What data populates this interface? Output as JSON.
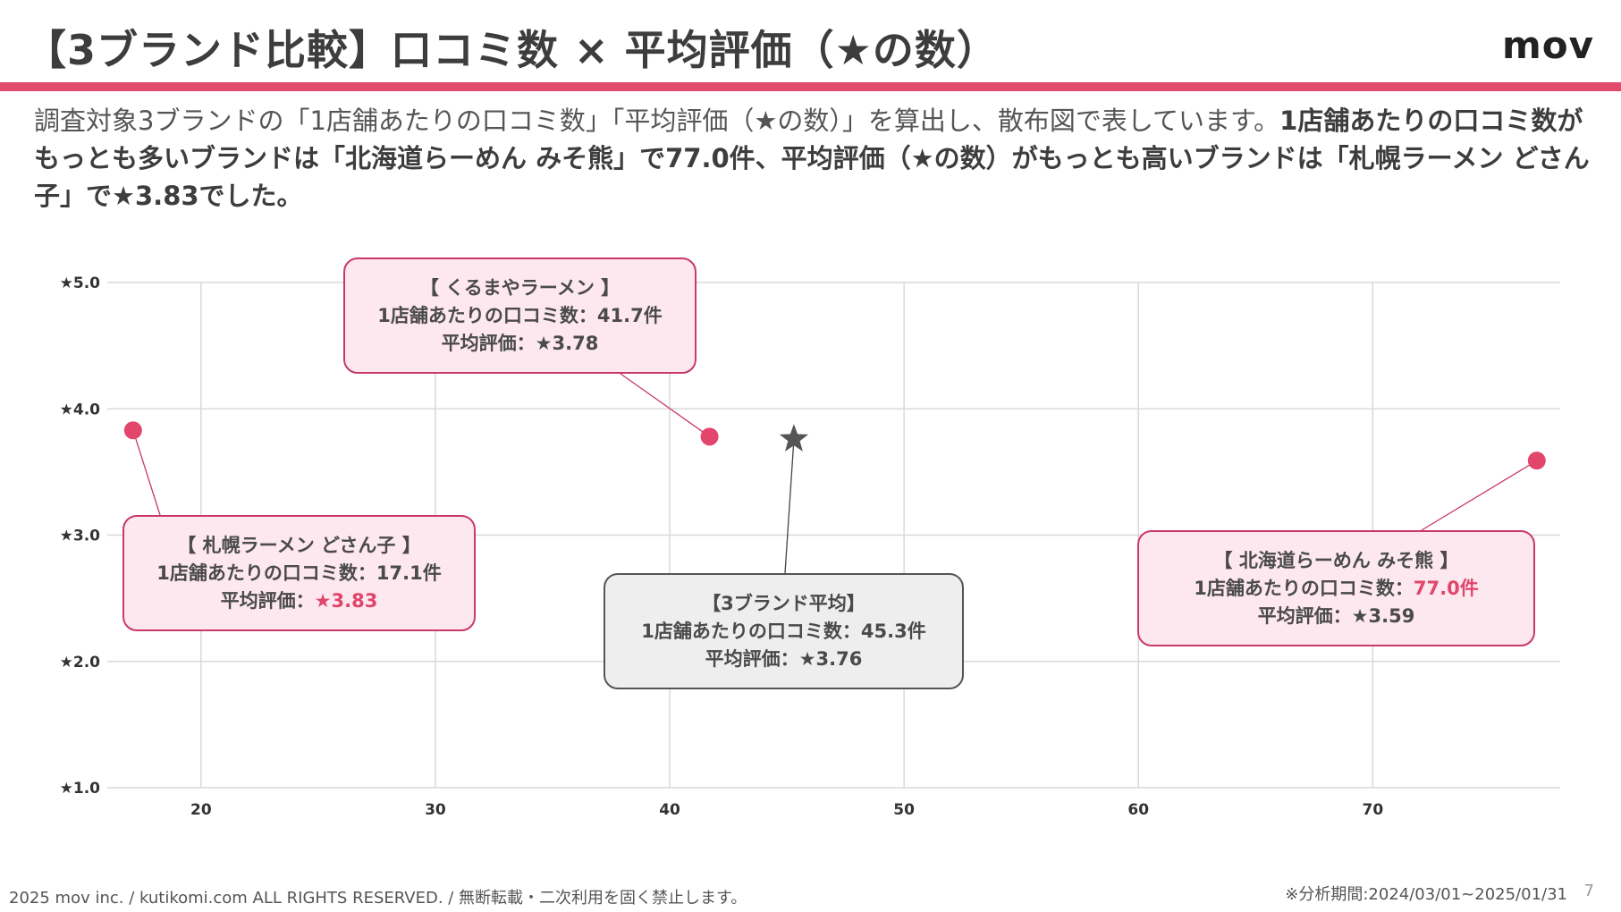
{
  "header": {
    "title": "【3ブランド比較】口コミ数 × 平均評価（★の数）",
    "logo": "mov"
  },
  "summary": {
    "normal": "調査対象3ブランドの「1店舗あたりの口コミ数」「平均評価（★の数）」を算出し、散布図で表しています。",
    "bold": "1店舗あたりの口コミ数がもっとも多いブランドは「北海道らーめん みそ熊」で77.0件、平均評価（★の数）がもっとも高いブランドは「札幌ラーメン どさん子」で★3.83でした。"
  },
  "chart_data": {
    "type": "scatter",
    "xlim": [
      16,
      78
    ],
    "ylim": [
      1.0,
      5.0
    ],
    "x_ticks": [
      20,
      30,
      40,
      50,
      60,
      70
    ],
    "y_ticks": [
      1.0,
      2.0,
      3.0,
      4.0,
      5.0
    ],
    "y_tick_labels": [
      "★1.0",
      "★2.0",
      "★3.0",
      "★4.0",
      "★5.0"
    ],
    "grid": true,
    "series": [
      {
        "points": [
          {
            "label": "札幌ラーメン どさん子",
            "x": 17.1,
            "y": 3.83
          },
          {
            "label": "くるまやラーメン",
            "x": 41.7,
            "y": 3.78
          },
          {
            "label": "北海道らーめん みそ熊",
            "x": 77.0,
            "y": 3.59
          }
        ],
        "color": "#e2466d"
      },
      {
        "points": [
          {
            "label": "3ブランド平均",
            "x": 45.3,
            "y": 3.76
          }
        ],
        "color": "#555555",
        "marker": "star"
      }
    ]
  },
  "callouts": {
    "dosanko": {
      "title": "【 札幌ラーメン どさん子 】",
      "reviews_label": "1店舗あたりの口コミ数：",
      "reviews_value": "17.1件",
      "rating_label": "平均評価：",
      "rating_value": "★3.83"
    },
    "kurumaya": {
      "title": "【 くるまやラーメン 】",
      "reviews_label": "1店舗あたりの口コミ数：",
      "reviews_value": "41.7件",
      "rating_label": "平均評価：",
      "rating_value": "★3.78"
    },
    "misokuma": {
      "title": "【 北海道らーめん みそ熊 】",
      "reviews_label": "1店舗あたりの口コミ数：",
      "reviews_value": "77.0件",
      "rating_label": "平均評価：",
      "rating_value": "★3.59"
    },
    "average": {
      "title": "【3ブランド平均】",
      "reviews_label": "1店舗あたりの口コミ数：",
      "reviews_value": "45.3件",
      "rating_label": "平均評価：",
      "rating_value": "★3.76"
    }
  },
  "footer": {
    "copyright": "2025 mov inc. / kutikomi.com ALL RIGHTS RESERVED. / 無断転載・二次利用を固く禁止します。",
    "period": "※分析期間:2024/03/01~2025/01/31",
    "page": "7"
  },
  "colors": {
    "accent": "#e24a6e",
    "point": "#e2466d",
    "average_marker": "#555555"
  }
}
